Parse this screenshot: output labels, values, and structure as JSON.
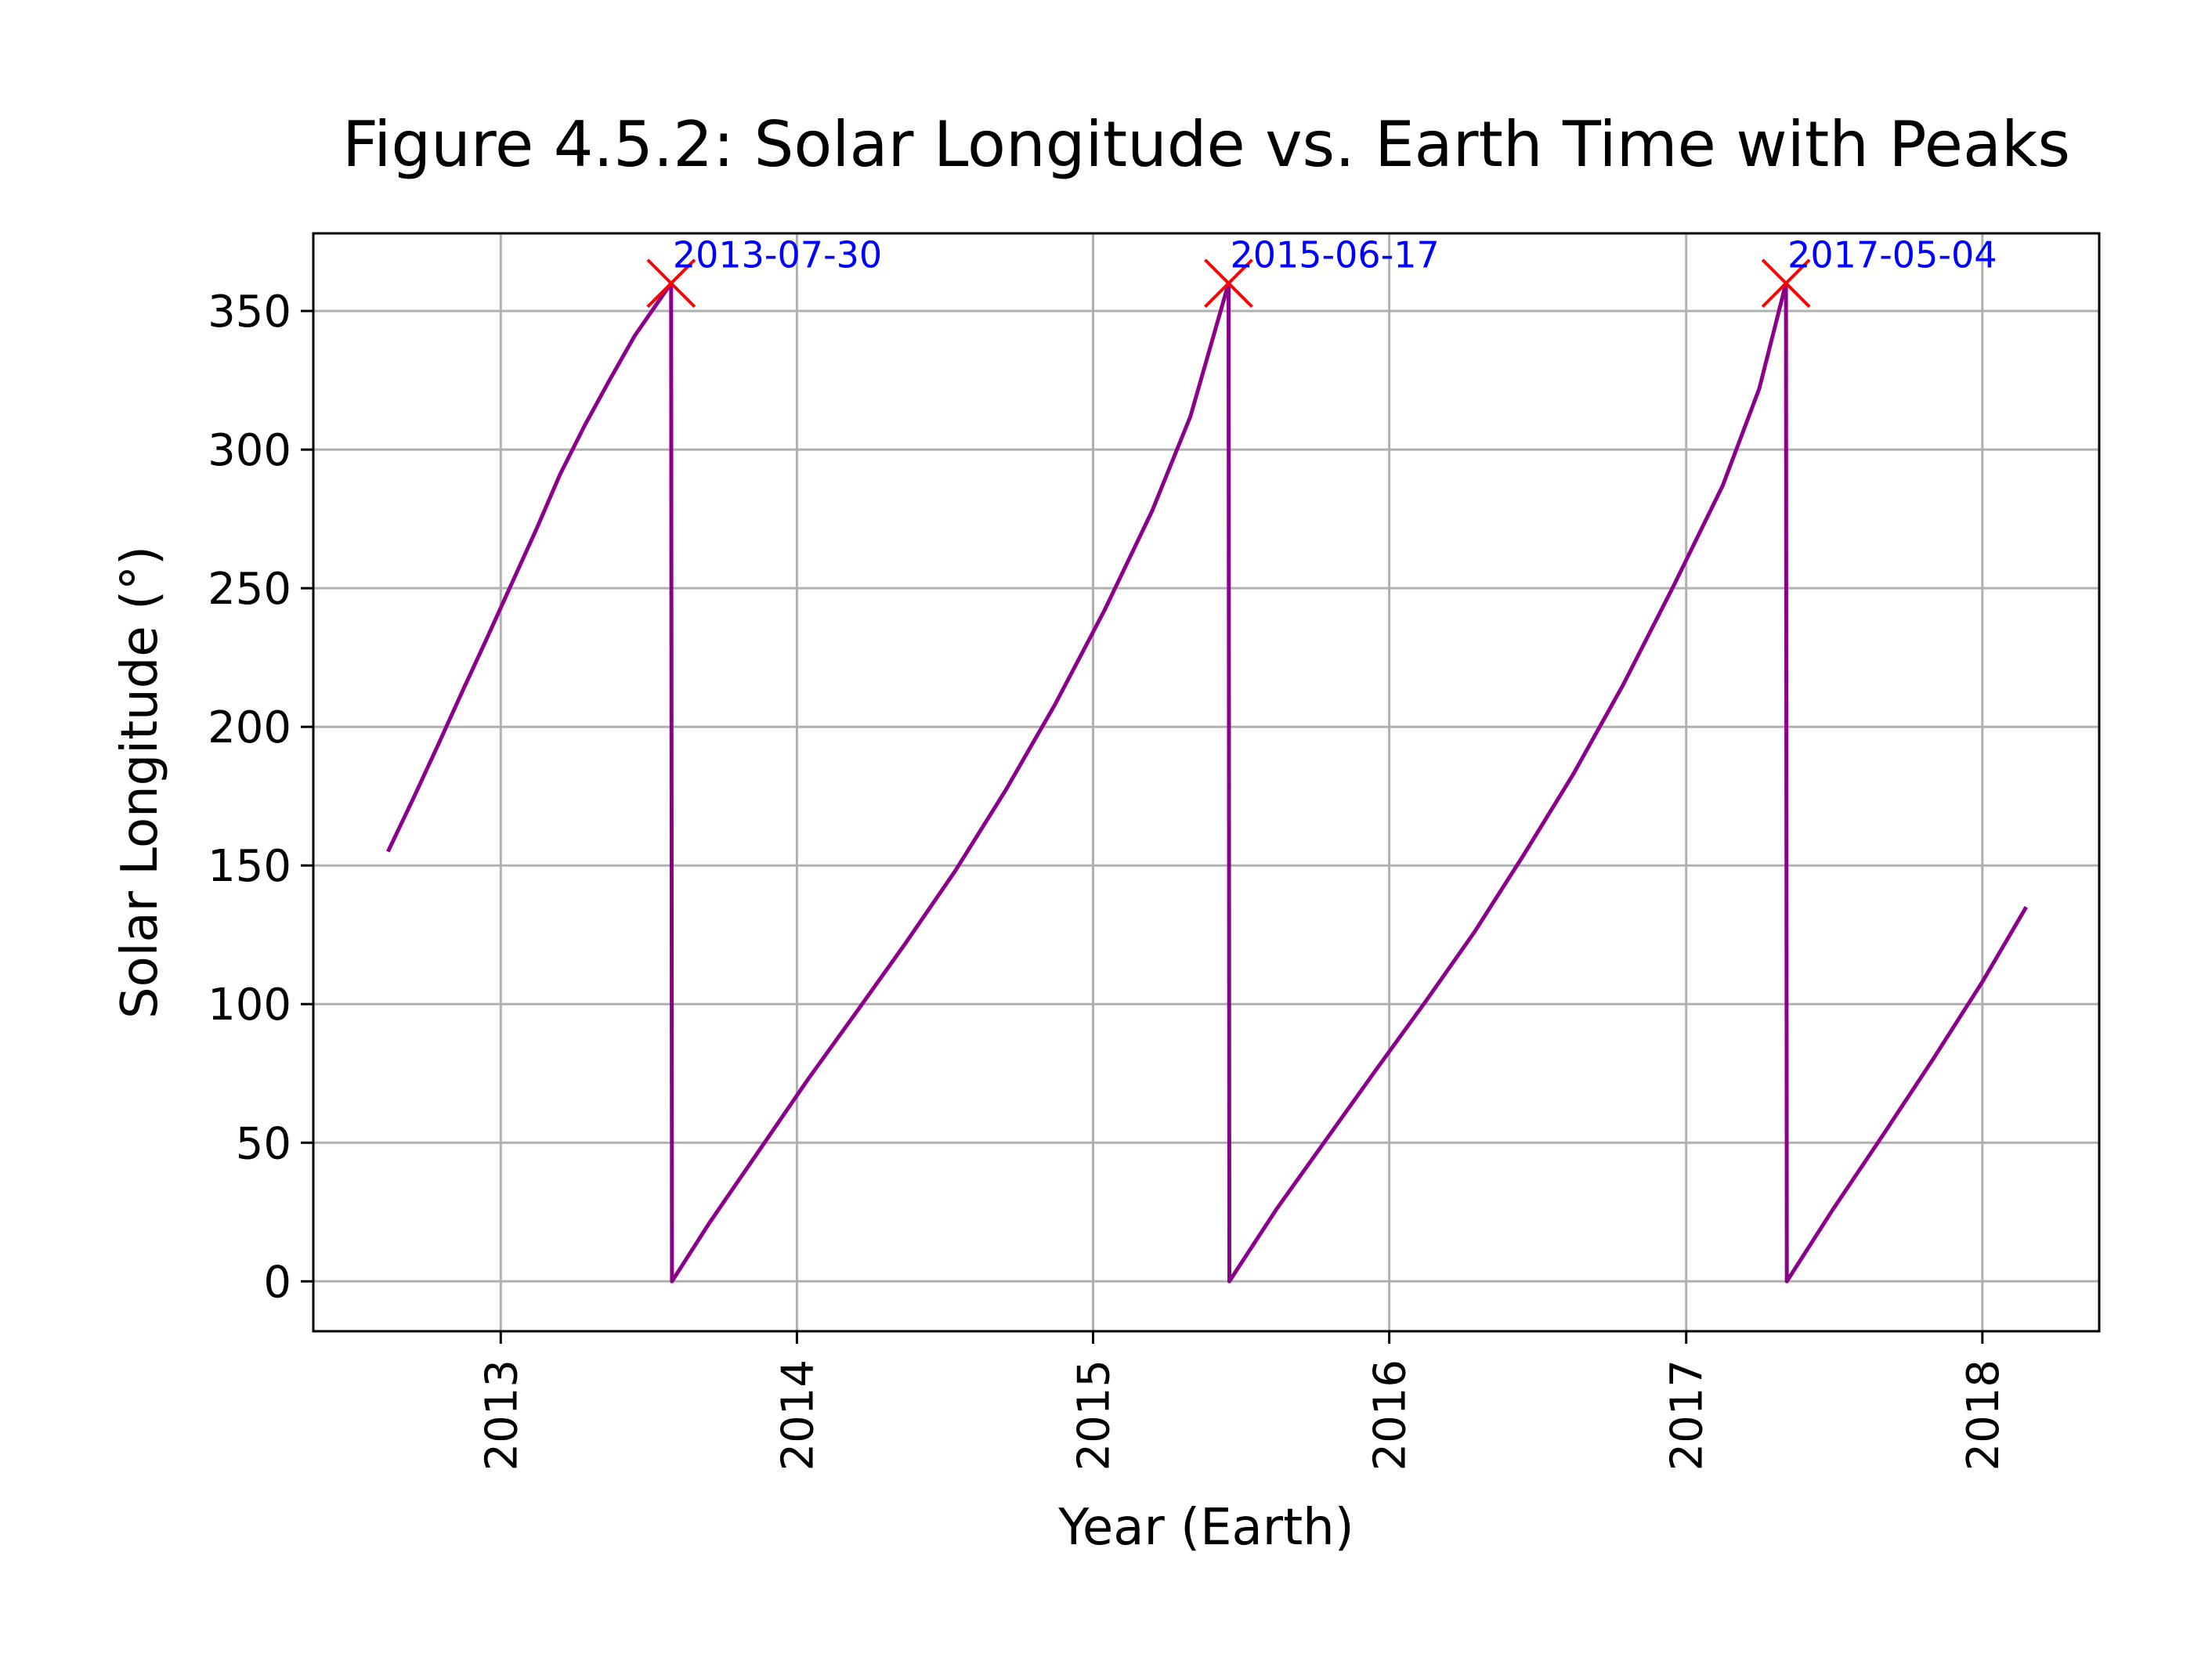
{
  "chart_data": {
    "type": "line",
    "title": "Figure 4.5.2: Solar Longitude vs. Earth Time with Peaks",
    "xlabel": "Year (Earth)",
    "ylabel": "Solar Longitude (°)",
    "x_axis_type": "date",
    "xlim": [
      "2012-05-15",
      "2018-05-25"
    ],
    "ylim": [
      -18,
      378
    ],
    "grid": true,
    "x_ticks": [
      "2013-01-01",
      "2014-01-01",
      "2015-01-01",
      "2016-01-01",
      "2017-01-01",
      "2018-01-01"
    ],
    "x_tick_labels": [
      "2013",
      "2014",
      "2015",
      "2016",
      "2017",
      "2018"
    ],
    "y_ticks": [
      0,
      50,
      100,
      150,
      200,
      250,
      300,
      350
    ],
    "y_tick_labels": [
      "0",
      "50",
      "100",
      "150",
      "200",
      "250",
      "300",
      "350"
    ],
    "colors": {
      "series": "#8b008b",
      "peak_marker": "#ff0000",
      "peak_label": "#0000ff",
      "grid": "#b0b0b0"
    },
    "series": [
      {
        "points": [
          [
            "2012-08-15",
            155
          ],
          [
            "2012-09-15",
            174
          ],
          [
            "2012-10-15",
            193
          ],
          [
            "2012-11-15",
            213
          ],
          [
            "2012-12-15",
            232
          ],
          [
            "2013-01-15",
            252
          ],
          [
            "2013-02-15",
            272
          ],
          [
            "2013-03-15",
            291
          ],
          [
            "2013-04-15",
            309
          ],
          [
            "2013-05-15",
            325
          ],
          [
            "2013-06-15",
            341
          ],
          [
            "2013-07-30",
            360
          ],
          [
            "2013-07-31",
            0
          ],
          [
            "2013-09-15",
            21
          ],
          [
            "2013-11-15",
            47
          ],
          [
            "2014-01-15",
            73
          ],
          [
            "2014-03-15",
            97
          ],
          [
            "2014-05-15",
            122
          ],
          [
            "2014-07-15",
            148
          ],
          [
            "2014-09-15",
            177
          ],
          [
            "2014-11-15",
            208
          ],
          [
            "2015-01-15",
            242
          ],
          [
            "2015-03-15",
            278
          ],
          [
            "2015-05-01",
            312
          ],
          [
            "2015-06-17",
            360
          ],
          [
            "2015-06-18",
            0
          ],
          [
            "2015-08-15",
            26
          ],
          [
            "2015-10-15",
            51
          ],
          [
            "2015-12-15",
            76
          ],
          [
            "2016-02-15",
            101
          ],
          [
            "2016-04-15",
            126
          ],
          [
            "2016-06-15",
            154
          ],
          [
            "2016-08-15",
            183
          ],
          [
            "2016-10-15",
            215
          ],
          [
            "2016-12-15",
            250
          ],
          [
            "2017-02-15",
            287
          ],
          [
            "2017-04-01",
            322
          ],
          [
            "2017-05-04",
            360
          ],
          [
            "2017-05-05",
            0
          ],
          [
            "2017-07-01",
            26
          ],
          [
            "2017-09-01",
            53
          ],
          [
            "2017-11-01",
            80
          ],
          [
            "2018-01-01",
            108
          ],
          [
            "2018-02-24",
            135
          ]
        ]
      }
    ],
    "peaks": [
      {
        "date": "2013-07-30",
        "value": 360,
        "label": "2013-07-30"
      },
      {
        "date": "2015-06-17",
        "value": 360,
        "label": "2015-06-17"
      },
      {
        "date": "2017-05-04",
        "value": 360,
        "label": "2017-05-04"
      }
    ]
  }
}
